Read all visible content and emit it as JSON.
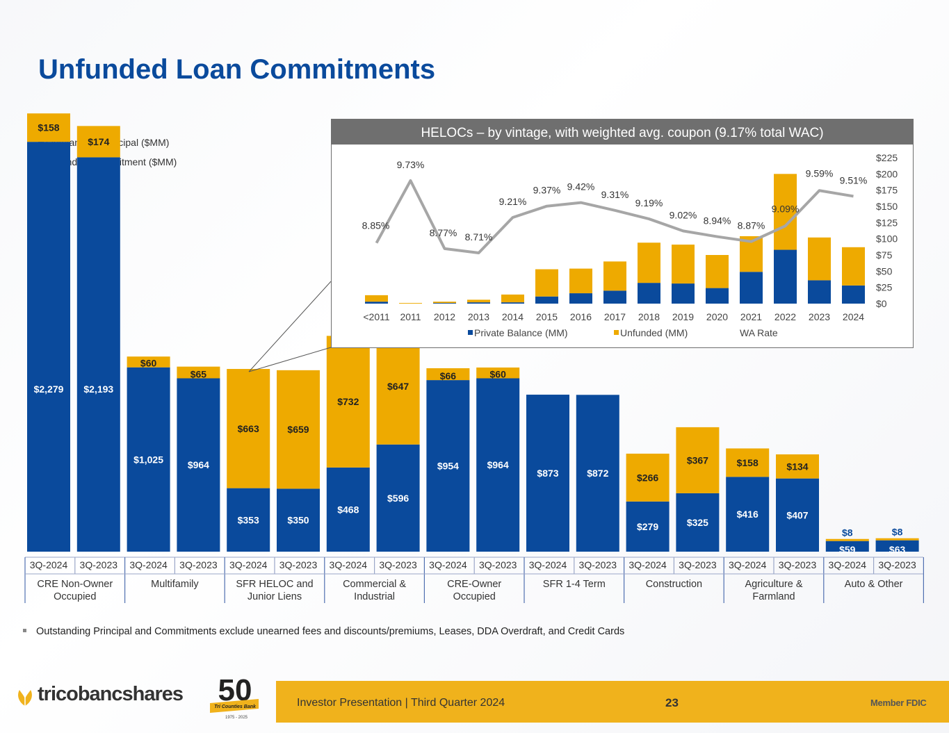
{
  "title": "Unfunded Loan Commitments",
  "colors": {
    "principal": "#0a4a9c",
    "unfunded": "#eeaa00",
    "line": "#a6a6a6",
    "title": "#0a4a9c",
    "footer": "#f0b21c"
  },
  "legend": {
    "principal": "Outstanding Principal ($MM)",
    "unfunded": "Unfunded Commitment ($MM)"
  },
  "chart_data": [
    {
      "type": "bar",
      "title": "Unfunded Loan Commitments",
      "stacked": true,
      "ylim": [
        0,
        2600
      ],
      "groups": [
        {
          "label": "CRE Non-Owner Occupied",
          "lines": [
            "CRE Non-Owner",
            "Occupied"
          ]
        },
        {
          "label": "Multifamily",
          "lines": [
            "Multifamily"
          ]
        },
        {
          "label": "SFR HELOC and Junior Liens",
          "lines": [
            "SFR HELOC and",
            "Junior Liens"
          ]
        },
        {
          "label": "Commercial & Industrial",
          "lines": [
            "Commercial &",
            "Industrial"
          ]
        },
        {
          "label": "CRE-Owner Occupied",
          "lines": [
            "CRE-Owner",
            "Occupied"
          ]
        },
        {
          "label": "SFR 1-4 Term",
          "lines": [
            "SFR 1-4 Term"
          ]
        },
        {
          "label": "Construction",
          "lines": [
            "Construction"
          ]
        },
        {
          "label": "Agriculture & Farmland",
          "lines": [
            "Agriculture &",
            "Farmland"
          ]
        },
        {
          "label": "Auto & Other",
          "lines": [
            "Auto & Other"
          ]
        }
      ],
      "categories": [
        "3Q-2024",
        "3Q-2023",
        "3Q-2024",
        "3Q-2023",
        "3Q-2024",
        "3Q-2023",
        "3Q-2024",
        "3Q-2023",
        "3Q-2024",
        "3Q-2023",
        "3Q-2024",
        "3Q-2023",
        "3Q-2024",
        "3Q-2023",
        "3Q-2024",
        "3Q-2023",
        "3Q-2024",
        "3Q-2023"
      ],
      "series": [
        {
          "name": "Outstanding Principal ($MM)",
          "values": [
            2279,
            2193,
            1025,
            964,
            353,
            350,
            468,
            596,
            954,
            964,
            873,
            872,
            279,
            325,
            416,
            407,
            59,
            63
          ],
          "labels": [
            "$2,279",
            "$2,193",
            "$1,025",
            "$964",
            "$353",
            "$350",
            "$468",
            "$596",
            "$954",
            "$964",
            "$873",
            "$872",
            "$279",
            "$325",
            "$416",
            "$407",
            "$59",
            "$63"
          ]
        },
        {
          "name": "Unfunded Commitment ($MM)",
          "values": [
            158,
            174,
            60,
            65,
            663,
            659,
            732,
            647,
            66,
            60,
            0,
            0,
            266,
            367,
            158,
            134,
            8,
            8
          ],
          "labels": [
            "$158",
            "$174",
            "$60",
            "$65",
            "$663",
            "$659",
            "$732",
            "$647",
            "$66",
            "$60",
            "",
            "",
            "$266",
            "$367",
            "$158",
            "$134",
            "$8",
            "$8"
          ]
        }
      ]
    },
    {
      "type": "bar",
      "title": "HELOCs – by vintage, with weighted avg. coupon (9.17% total WAC)",
      "stacked": true,
      "categories": [
        "<2011",
        "2011",
        "2012",
        "2013",
        "2014",
        "2015",
        "2016",
        "2017",
        "2018",
        "2019",
        "2020",
        "2021",
        "2022",
        "2023",
        "2024"
      ],
      "ylim": [
        0,
        225
      ],
      "yticks": [
        "$0",
        "$25",
        "$50",
        "$75",
        "$100",
        "$125",
        "$150",
        "$175",
        "$200",
        "$225"
      ],
      "series": [
        {
          "name": "Private Balance (MM)",
          "values": [
            3,
            0,
            1,
            2,
            2,
            11,
            16,
            20,
            32,
            31,
            24,
            49,
            83,
            36,
            28
          ]
        },
        {
          "name": "Unfunded (MM)",
          "values": [
            10,
            1,
            2,
            4,
            12,
            42,
            38,
            45,
            62,
            60,
            51,
            55,
            117,
            66,
            59
          ]
        },
        {
          "name": "WA Rate",
          "type": "line",
          "values": [
            8.85,
            9.73,
            8.77,
            8.71,
            9.21,
            9.37,
            9.42,
            9.31,
            9.19,
            9.02,
            8.94,
            8.87,
            9.09,
            9.59,
            9.51
          ],
          "labels": [
            "8.85%",
            "9.73%",
            "8.77%",
            "8.71%",
            "9.21%",
            "9.37%",
            "9.42%",
            "9.31%",
            "9.19%",
            "9.02%",
            "8.94%",
            "8.87%",
            "9.09%",
            "9.59%",
            "9.51%"
          ]
        }
      ]
    }
  ],
  "footnote": "Outstanding Principal and Commitments exclude unearned fees and discounts/premiums, Leases, DDA Overdraft, and Credit Cards",
  "footer": {
    "company": "tricobancshares",
    "anniversary": "50",
    "anniversary_sub": "Tri Counties Bank",
    "anniversary_years": "1975 - 2025",
    "presentation": "Investor Presentation  |  Third Quarter 2024",
    "page": "23",
    "member": "Member FDIC"
  }
}
